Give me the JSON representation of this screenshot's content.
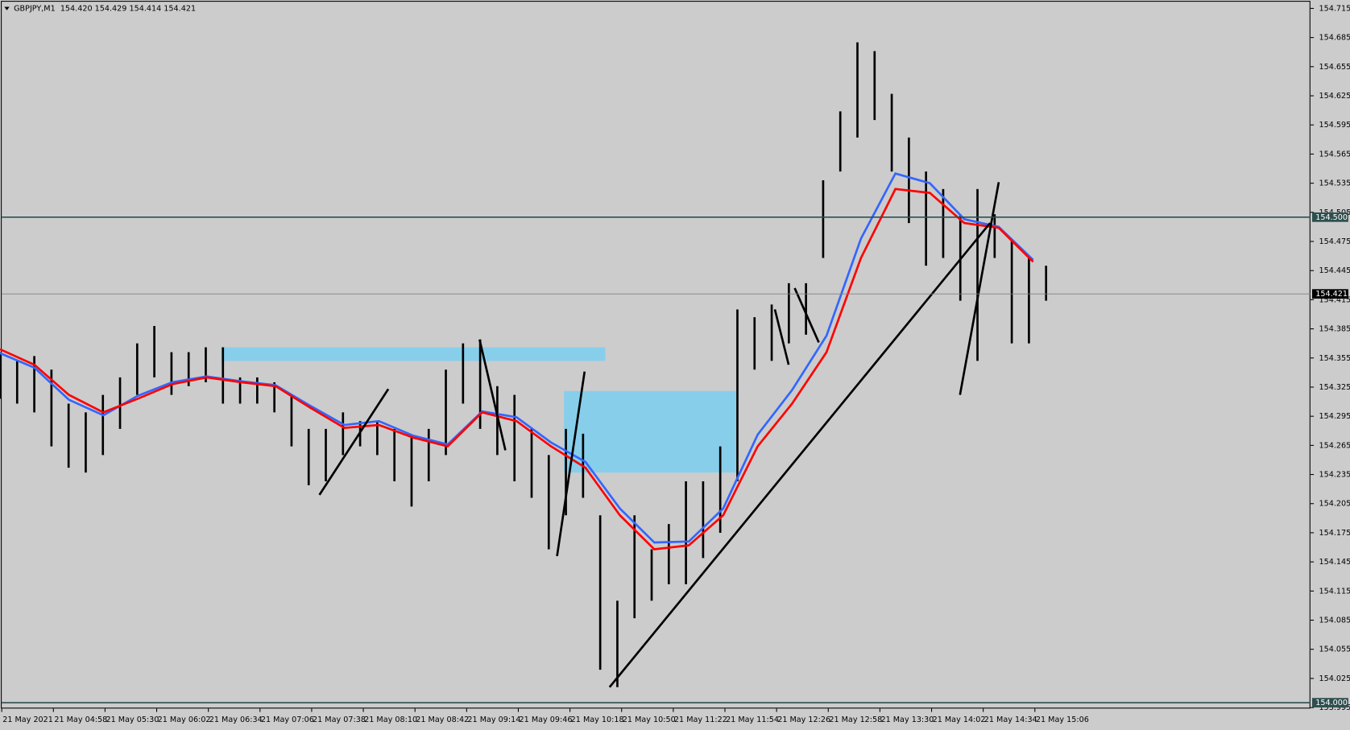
{
  "chart_data": {
    "type": "candlestick",
    "symbol": "GBPJPY,M1",
    "quote": "154.420 154.429 154.414 154.421",
    "ylim": [
      153.994,
      154.721
    ],
    "yticks": [
      154.715,
      154.685,
      154.655,
      154.625,
      154.595,
      154.565,
      154.535,
      154.505,
      154.475,
      154.445,
      154.415,
      154.385,
      154.355,
      154.325,
      154.295,
      154.265,
      154.235,
      154.205,
      154.175,
      154.145,
      154.115,
      154.085,
      154.055,
      154.025,
      153.995
    ],
    "categories": [
      "21 May 2021",
      "21 May 04:58",
      "21 May 05:30",
      "21 May 06:02",
      "21 May 06:34",
      "21 May 07:06",
      "21 May 07:38",
      "21 May 08:10",
      "21 May 08:42",
      "21 May 09:14",
      "21 May 09:46",
      "21 May 10:18",
      "21 May 10:50",
      "21 May 11:22",
      "21 May 11:54",
      "21 May 12:26",
      "21 May 12:58",
      "21 May 13:30",
      "21 May 14:02",
      "21 May 14:34",
      "21 May 15:06"
    ],
    "candle_color": "#000000",
    "high": [
      154.361,
      154.352,
      154.357,
      154.343,
      154.308,
      154.299,
      154.317,
      154.335,
      154.37,
      154.388,
      154.361,
      154.361,
      154.366,
      154.366,
      154.335,
      154.335,
      154.33,
      154.317,
      154.282,
      154.282,
      154.299,
      154.29,
      154.29,
      154.282,
      154.273,
      154.282,
      154.343,
      154.37,
      154.374,
      154.326,
      154.317,
      154.282,
      154.255,
      154.282,
      154.277,
      154.193,
      154.105,
      154.193,
      154.158,
      154.184,
      154.228,
      154.228,
      154.264,
      154.405,
      154.397,
      154.41,
      154.432,
      154.432,
      154.538,
      154.609,
      154.68,
      154.671,
      154.627,
      154.582,
      154.547,
      154.529,
      154.503,
      154.529,
      154.503,
      154.476,
      154.458,
      154.45
    ],
    "low": [
      154.313,
      154.308,
      154.299,
      154.264,
      154.242,
      154.237,
      154.255,
      154.282,
      154.317,
      154.335,
      154.317,
      154.326,
      154.33,
      154.308,
      154.308,
      154.308,
      154.299,
      154.264,
      154.224,
      154.228,
      154.255,
      154.264,
      154.255,
      154.228,
      154.202,
      154.228,
      154.255,
      154.308,
      154.282,
      154.255,
      154.228,
      154.211,
      154.158,
      154.193,
      154.211,
      154.034,
      154.016,
      154.087,
      154.105,
      154.122,
      154.122,
      154.149,
      154.175,
      154.228,
      154.343,
      154.352,
      154.37,
      154.379,
      154.458,
      154.547,
      154.582,
      154.6,
      154.547,
      154.494,
      154.45,
      154.458,
      154.414,
      154.352,
      154.458,
      154.37,
      154.37,
      154.414
    ],
    "ma_lines": [
      {
        "color": "#3366ff",
        "values": [
          154.36,
          154.345,
          154.312,
          154.296,
          154.316,
          154.33,
          154.336,
          154.331,
          154.327,
          154.306,
          154.286,
          154.29,
          154.275,
          154.266,
          154.3,
          154.294,
          154.268,
          154.248,
          154.2,
          154.165,
          154.166,
          154.2,
          154.276,
          154.322,
          154.378,
          154.478,
          154.545,
          154.535,
          154.498,
          154.49,
          154.456
        ]
      },
      {
        "color": "#ff0000",
        "values": [
          154.364,
          154.348,
          154.317,
          154.299,
          154.313,
          154.328,
          154.335,
          154.33,
          154.326,
          154.304,
          154.283,
          154.286,
          154.273,
          154.264,
          154.299,
          154.29,
          154.264,
          154.242,
          154.193,
          154.158,
          154.162,
          154.193,
          154.264,
          154.308,
          154.361,
          154.458,
          154.529,
          154.525,
          154.494,
          154.489,
          154.454
        ]
      }
    ],
    "zones": [
      {
        "top": 154.366,
        "bottom": 154.352,
        "color": "#87ceeb"
      },
      {
        "top": 154.321,
        "bottom": 154.237,
        "color": "#87ceeb"
      }
    ],
    "trendlines": [
      {
        "from": 154.016,
        "to": 154.494
      },
      {
        "from": 154.214,
        "to": 154.323
      },
      {
        "from": 154.374,
        "to": 154.26
      },
      {
        "from": 154.151,
        "to": 154.341
      },
      {
        "from": 154.405,
        "to": 154.348
      },
      {
        "from": 154.427,
        "to": 154.371
      },
      {
        "from": 154.317,
        "to": 154.536
      }
    ],
    "price_lines": [
      {
        "value": 154.5,
        "label": "154.500",
        "color": "#2f4f4f"
      },
      {
        "value": 154.421,
        "label": "154.421",
        "color": "#808080"
      },
      {
        "value": 154,
        "label": "154.000",
        "color": "#2f4f4f"
      }
    ]
  }
}
